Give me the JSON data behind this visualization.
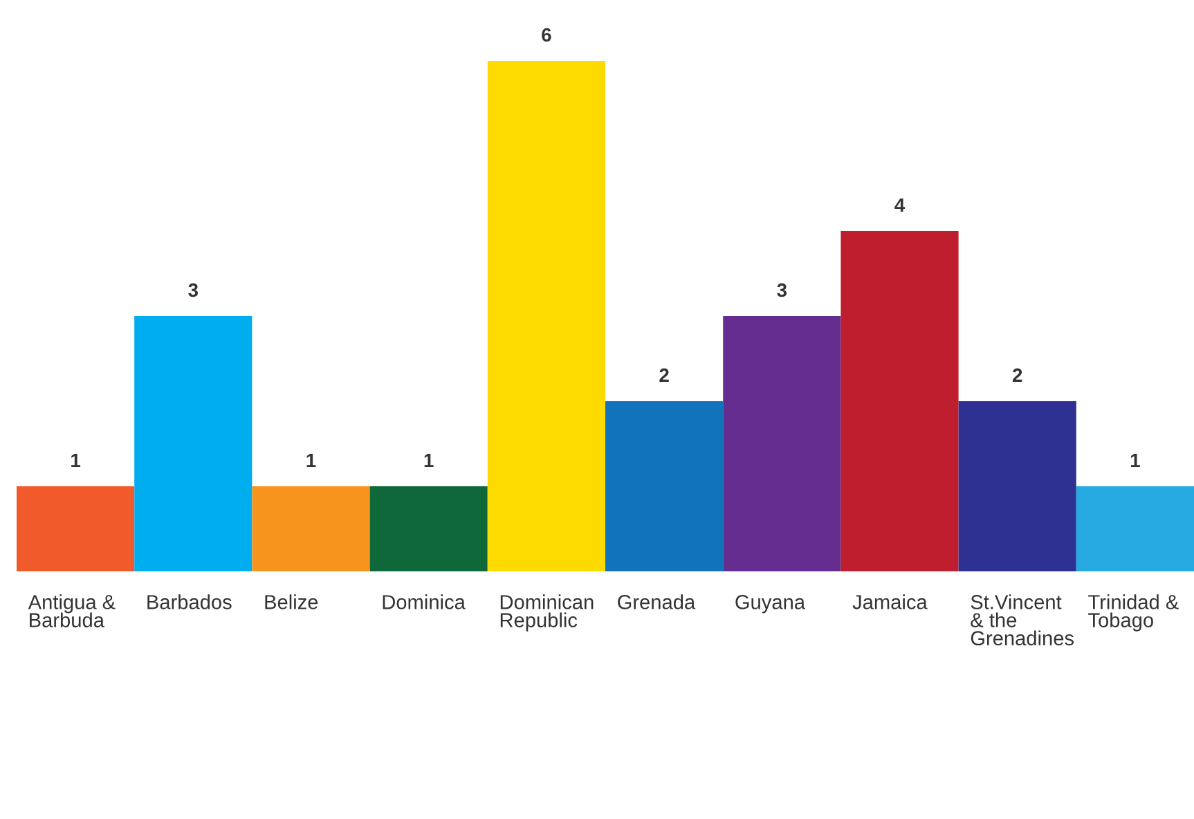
{
  "chart_data": {
    "type": "bar",
    "data_labels": true,
    "categories": [
      "Antigua & Barbuda",
      "Barbados",
      "Belize",
      "Dominica",
      "Dominican Republic",
      "Grenada",
      "Guyana",
      "Jamaica",
      "St.Vincent & the Grenadines",
      "Trinidad & Tobago"
    ],
    "values": [
      1,
      3,
      1,
      1,
      6,
      2,
      3,
      4,
      2,
      1
    ],
    "colors": [
      "#f15a2b",
      "#00adee",
      "#f7941e",
      "#0e6839",
      "#fedb00",
      "#1174bb",
      "#662d91",
      "#be1e2d",
      "#2e3192",
      "#27aae1"
    ]
  }
}
